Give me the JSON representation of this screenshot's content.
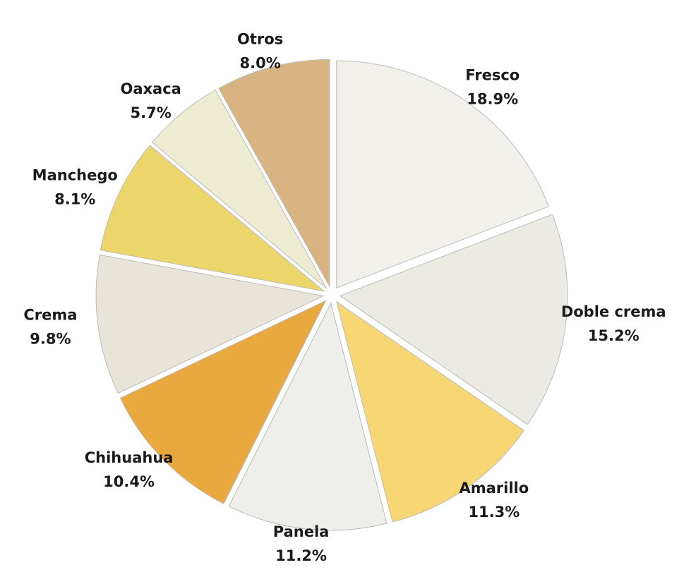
{
  "chart_data": {
    "type": "pie",
    "categories": [
      "Fresco",
      "Doble crema",
      "Amarillo",
      "Panela",
      "Chihuahua",
      "Crema",
      "Manchego",
      "Oaxaca",
      "Otros"
    ],
    "values": [
      18.9,
      15.2,
      11.3,
      11.2,
      10.4,
      9.8,
      8.1,
      5.7,
      8.0
    ],
    "value_labels": [
      "18.9%",
      "15.2%",
      "11.3%",
      "11.2%",
      "10.4%",
      "9.8%",
      "8.1%",
      "5.7%",
      "8.0%"
    ],
    "colors": [
      "#f1f0ea",
      "#ecebe3",
      "#f6d774",
      "#eeeeea",
      "#e9a93e",
      "#e8e4d8",
      "#ecd56a",
      "#eeecd2",
      "#d8b483"
    ]
  }
}
